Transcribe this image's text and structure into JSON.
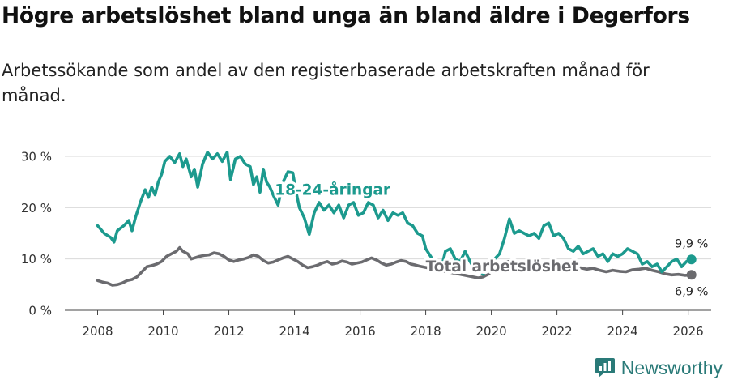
{
  "header": {
    "title": "Högre arbetslöshet bland unga än bland äldre i Degerfors",
    "subtitle": "Arbetssökande som andel av den registerbaserade arbetskraften månad för månad."
  },
  "brand": {
    "name": "Newsworthy",
    "color": "#2a7a78"
  },
  "chart_data": {
    "type": "line",
    "title": "Högre arbetslöshet bland unga än bland äldre i Degerfors",
    "subtitle": "Arbetssökande som andel av den registerbaserade arbetskraften månad för månad.",
    "xlabel": "",
    "ylabel": "",
    "xlim": [
      2007.0,
      2026.7
    ],
    "ylim": [
      0,
      30
    ],
    "grid": true,
    "x_ticks": [
      2008,
      2010,
      2012,
      2014,
      2016,
      2018,
      2020,
      2022,
      2024,
      2026
    ],
    "x_tick_labels": [
      "2008",
      "2010",
      "2012",
      "2014",
      "2016",
      "2018",
      "2020",
      "2022",
      "2024",
      "2026"
    ],
    "y_ticks": [
      0,
      10,
      20,
      30
    ],
    "y_tick_labels": [
      "0 %",
      "10 %",
      "20 %",
      "30 %"
    ],
    "series": [
      {
        "name": "18-24-åringar",
        "color": "#1c9a8e",
        "end_label": "9,9 %",
        "points": [
          [
            2008.0,
            16.5
          ],
          [
            2008.2,
            15.0
          ],
          [
            2008.4,
            14.2
          ],
          [
            2008.5,
            13.3
          ],
          [
            2008.6,
            15.5
          ],
          [
            2008.8,
            16.5
          ],
          [
            2008.95,
            17.5
          ],
          [
            2009.05,
            15.5
          ],
          [
            2009.15,
            18.0
          ],
          [
            2009.3,
            21.0
          ],
          [
            2009.45,
            23.5
          ],
          [
            2009.55,
            22.0
          ],
          [
            2009.65,
            24.0
          ],
          [
            2009.75,
            22.5
          ],
          [
            2009.85,
            25.0
          ],
          [
            2009.95,
            26.5
          ],
          [
            2010.05,
            29.0
          ],
          [
            2010.2,
            30.0
          ],
          [
            2010.35,
            28.8
          ],
          [
            2010.5,
            30.5
          ],
          [
            2010.6,
            28.0
          ],
          [
            2010.7,
            29.5
          ],
          [
            2010.85,
            26.0
          ],
          [
            2010.95,
            27.5
          ],
          [
            2011.05,
            24.0
          ],
          [
            2011.2,
            28.5
          ],
          [
            2011.35,
            30.8
          ],
          [
            2011.5,
            29.5
          ],
          [
            2011.65,
            30.5
          ],
          [
            2011.8,
            29.0
          ],
          [
            2011.95,
            30.8
          ],
          [
            2012.05,
            25.5
          ],
          [
            2012.2,
            29.5
          ],
          [
            2012.35,
            30.0
          ],
          [
            2012.5,
            28.5
          ],
          [
            2012.65,
            28.0
          ],
          [
            2012.75,
            24.5
          ],
          [
            2012.85,
            26.0
          ],
          [
            2012.95,
            23.0
          ],
          [
            2013.05,
            27.5
          ],
          [
            2013.15,
            25.0
          ],
          [
            2013.25,
            24.0
          ],
          [
            2013.35,
            22.5
          ],
          [
            2013.5,
            20.5
          ],
          [
            2013.65,
            25.0
          ],
          [
            2013.8,
            27.0
          ],
          [
            2013.95,
            26.8
          ],
          [
            2014.05,
            23.0
          ],
          [
            2014.15,
            20.0
          ],
          [
            2014.3,
            18.0
          ],
          [
            2014.45,
            14.8
          ],
          [
            2014.6,
            19.0
          ],
          [
            2014.75,
            21.0
          ],
          [
            2014.9,
            19.5
          ],
          [
            2015.05,
            20.5
          ],
          [
            2015.2,
            19.0
          ],
          [
            2015.35,
            20.5
          ],
          [
            2015.5,
            18.0
          ],
          [
            2015.65,
            20.5
          ],
          [
            2015.8,
            21.0
          ],
          [
            2015.95,
            18.5
          ],
          [
            2016.1,
            19.0
          ],
          [
            2016.25,
            21.0
          ],
          [
            2016.4,
            20.5
          ],
          [
            2016.55,
            18.0
          ],
          [
            2016.7,
            19.5
          ],
          [
            2016.85,
            17.5
          ],
          [
            2017.0,
            19.0
          ],
          [
            2017.15,
            18.5
          ],
          [
            2017.3,
            19.0
          ],
          [
            2017.45,
            17.0
          ],
          [
            2017.6,
            16.5
          ],
          [
            2017.75,
            15.0
          ],
          [
            2017.9,
            14.5
          ],
          [
            2018.0,
            12.0
          ],
          [
            2018.15,
            10.5
          ],
          [
            2018.3,
            9.0
          ],
          [
            2018.45,
            7.5
          ],
          [
            2018.6,
            11.5
          ],
          [
            2018.75,
            12.0
          ],
          [
            2018.9,
            10.0
          ],
          [
            2019.05,
            9.5
          ],
          [
            2019.2,
            11.5
          ],
          [
            2019.35,
            9.5
          ],
          [
            2019.45,
            8.5
          ],
          [
            2019.6,
            8.0
          ],
          [
            2019.75,
            7.0
          ],
          [
            2019.9,
            8.5
          ],
          [
            2020.0,
            9.0
          ],
          [
            2020.1,
            10.0
          ],
          [
            2020.25,
            11.0
          ],
          [
            2020.4,
            14.0
          ],
          [
            2020.55,
            17.8
          ],
          [
            2020.7,
            15.0
          ],
          [
            2020.85,
            15.5
          ],
          [
            2021.0,
            15.0
          ],
          [
            2021.15,
            14.5
          ],
          [
            2021.3,
            15.0
          ],
          [
            2021.45,
            14.0
          ],
          [
            2021.6,
            16.5
          ],
          [
            2021.75,
            17.0
          ],
          [
            2021.9,
            14.5
          ],
          [
            2022.05,
            15.0
          ],
          [
            2022.2,
            14.0
          ],
          [
            2022.35,
            12.0
          ],
          [
            2022.5,
            11.5
          ],
          [
            2022.65,
            12.5
          ],
          [
            2022.8,
            11.0
          ],
          [
            2022.95,
            11.5
          ],
          [
            2023.1,
            12.0
          ],
          [
            2023.25,
            10.5
          ],
          [
            2023.4,
            11.0
          ],
          [
            2023.55,
            9.5
          ],
          [
            2023.7,
            11.0
          ],
          [
            2023.85,
            10.5
          ],
          [
            2024.0,
            11.0
          ],
          [
            2024.15,
            12.0
          ],
          [
            2024.3,
            11.5
          ],
          [
            2024.45,
            11.0
          ],
          [
            2024.6,
            9.0
          ],
          [
            2024.75,
            9.5
          ],
          [
            2024.9,
            8.5
          ],
          [
            2025.05,
            9.0
          ],
          [
            2025.2,
            7.5
          ],
          [
            2025.35,
            8.5
          ],
          [
            2025.5,
            9.5
          ],
          [
            2025.65,
            10.0
          ],
          [
            2025.8,
            8.5
          ],
          [
            2025.95,
            9.5
          ],
          [
            2026.1,
            9.9
          ]
        ]
      },
      {
        "name": "Total arbetslöshet",
        "color": "#6b6b6f",
        "end_label": "6,9 %",
        "points": [
          [
            2008.0,
            5.8
          ],
          [
            2008.15,
            5.5
          ],
          [
            2008.3,
            5.3
          ],
          [
            2008.45,
            4.9
          ],
          [
            2008.6,
            5.0
          ],
          [
            2008.75,
            5.3
          ],
          [
            2008.9,
            5.8
          ],
          [
            2009.05,
            6.0
          ],
          [
            2009.2,
            6.5
          ],
          [
            2009.35,
            7.5
          ],
          [
            2009.5,
            8.5
          ],
          [
            2009.65,
            8.7
          ],
          [
            2009.8,
            9.0
          ],
          [
            2009.95,
            9.5
          ],
          [
            2010.1,
            10.5
          ],
          [
            2010.25,
            11.0
          ],
          [
            2010.4,
            11.5
          ],
          [
            2010.5,
            12.2
          ],
          [
            2010.6,
            11.5
          ],
          [
            2010.75,
            11.0
          ],
          [
            2010.85,
            10.0
          ],
          [
            2010.95,
            10.2
          ],
          [
            2011.1,
            10.5
          ],
          [
            2011.25,
            10.7
          ],
          [
            2011.4,
            10.8
          ],
          [
            2011.55,
            11.2
          ],
          [
            2011.7,
            11.0
          ],
          [
            2011.85,
            10.5
          ],
          [
            2012.0,
            9.8
          ],
          [
            2012.15,
            9.5
          ],
          [
            2012.3,
            9.8
          ],
          [
            2012.45,
            10.0
          ],
          [
            2012.6,
            10.3
          ],
          [
            2012.75,
            10.8
          ],
          [
            2012.9,
            10.5
          ],
          [
            2013.05,
            9.7
          ],
          [
            2013.2,
            9.2
          ],
          [
            2013.35,
            9.4
          ],
          [
            2013.5,
            9.8
          ],
          [
            2013.65,
            10.2
          ],
          [
            2013.8,
            10.5
          ],
          [
            2013.95,
            10.0
          ],
          [
            2014.1,
            9.5
          ],
          [
            2014.25,
            8.8
          ],
          [
            2014.4,
            8.3
          ],
          [
            2014.55,
            8.5
          ],
          [
            2014.7,
            8.8
          ],
          [
            2014.85,
            9.2
          ],
          [
            2015.0,
            9.5
          ],
          [
            2015.15,
            9.0
          ],
          [
            2015.3,
            9.2
          ],
          [
            2015.45,
            9.6
          ],
          [
            2015.6,
            9.4
          ],
          [
            2015.75,
            9.0
          ],
          [
            2015.9,
            9.2
          ],
          [
            2016.05,
            9.4
          ],
          [
            2016.2,
            9.8
          ],
          [
            2016.35,
            10.2
          ],
          [
            2016.5,
            9.8
          ],
          [
            2016.65,
            9.2
          ],
          [
            2016.8,
            8.8
          ],
          [
            2016.95,
            9.0
          ],
          [
            2017.1,
            9.4
          ],
          [
            2017.25,
            9.7
          ],
          [
            2017.4,
            9.5
          ],
          [
            2017.55,
            9.0
          ],
          [
            2017.7,
            8.8
          ],
          [
            2017.8,
            8.6
          ],
          [
            2019.6,
            6.3
          ],
          [
            2019.75,
            6.5
          ],
          [
            2019.9,
            7.0
          ],
          [
            2020.05,
            7.8
          ],
          [
            2020.2,
            8.5
          ],
          [
            2020.35,
            9.2
          ],
          [
            2020.5,
            9.5
          ],
          [
            2020.65,
            9.3
          ],
          [
            2020.8,
            9.0
          ],
          [
            2020.95,
            9.2
          ],
          [
            2021.1,
            9.0
          ],
          [
            2021.3,
            8.8
          ],
          [
            2021.5,
            8.7
          ],
          [
            2021.7,
            8.9
          ],
          [
            2021.9,
            8.5
          ],
          [
            2022.1,
            8.7
          ],
          [
            2022.3,
            8.3
          ],
          [
            2022.5,
            8.5
          ],
          [
            2022.7,
            8.3
          ],
          [
            2022.9,
            8.0
          ],
          [
            2023.1,
            8.2
          ],
          [
            2023.3,
            7.8
          ],
          [
            2023.5,
            7.5
          ],
          [
            2023.7,
            7.8
          ],
          [
            2023.9,
            7.6
          ],
          [
            2024.1,
            7.5
          ],
          [
            2024.3,
            7.9
          ],
          [
            2024.5,
            8.0
          ],
          [
            2024.7,
            8.2
          ],
          [
            2024.9,
            7.8
          ],
          [
            2025.1,
            7.5
          ],
          [
            2025.3,
            7.1
          ],
          [
            2025.5,
            6.9
          ],
          [
            2025.7,
            7.0
          ],
          [
            2025.9,
            6.8
          ],
          [
            2026.1,
            6.9
          ]
        ]
      }
    ],
    "annotations": [
      {
        "text": "18-24-åringar",
        "series": 0,
        "x": 2013.4,
        "y": 22.5
      },
      {
        "text": "Total arbetslöshet",
        "series": 1,
        "x": 2018.0,
        "y": 7.6
      }
    ]
  }
}
